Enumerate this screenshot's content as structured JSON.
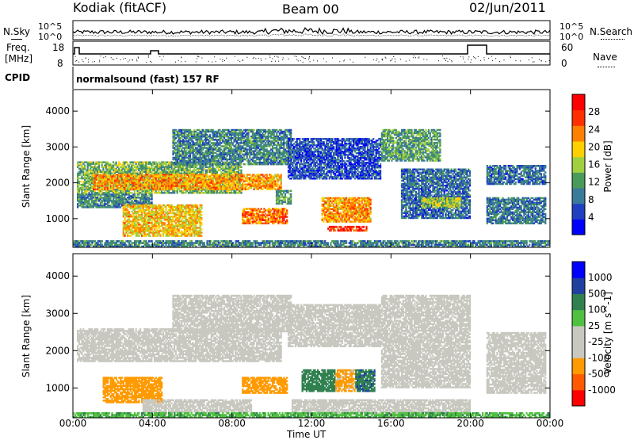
{
  "header": {
    "station": "Kodiak (fitACF)",
    "beam": "Beam 00",
    "date": "02/Jun/2011"
  },
  "strips": {
    "nsky_label": "N.Sky",
    "nsearch_label": "N.Search",
    "noise_ticks": [
      "10^5",
      "10^0"
    ],
    "freq_label": "Freq.",
    "freq_unit": "[MHz]",
    "freq_ticks": [
      "18",
      "8"
    ],
    "nave_label": "Nave",
    "nave_ticks": [
      "60",
      "0"
    ],
    "cpid_label": "CPID",
    "cpid_value": "normalsound (fast) 157 RF"
  },
  "colors": {
    "power": [
      "#0000ff",
      "#2040c0",
      "#3a7a9a",
      "#4a9a5a",
      "#a0d040",
      "#ffd000",
      "#ff8000",
      "#ff3000",
      "#ff0000"
    ],
    "velocity": [
      "#ff0000",
      "#ff5a00",
      "#ff9a00",
      "#c8c8c0",
      "#c8c8c0",
      "#50c040",
      "#308050",
      "#2040a0",
      "#0000ff"
    ],
    "ground_scatter": "#c0c0b8"
  },
  "chart_data": [
    {
      "type": "heatmap",
      "name": "power",
      "xlabel": "",
      "ylabel": "Slant Range [km]",
      "x_ticks": [
        "00:00",
        "04:00",
        "08:00",
        "12:00",
        "16:00",
        "20:00",
        "00:00"
      ],
      "xlim": [
        0,
        24
      ],
      "y_ticks": [
        1000,
        2000,
        3000,
        4000
      ],
      "ylim": [
        200,
        4600
      ],
      "colorbar_label": "Power [dB]",
      "colorbar_ticks": [
        4,
        8,
        12,
        16,
        20,
        24,
        28
      ],
      "colorbar_range": [
        0,
        32
      ],
      "regions": [
        {
          "t0": 0.2,
          "t1": 8.5,
          "r0": 1700,
          "r1": 2600,
          "level": 14
        },
        {
          "t0": 1.0,
          "t1": 10.5,
          "r0": 1800,
          "r1": 2250,
          "level": 22
        },
        {
          "t0": 0.2,
          "t1": 4.0,
          "r0": 1300,
          "r1": 1700,
          "level": 10
        },
        {
          "t0": 2.5,
          "t1": 6.5,
          "r0": 500,
          "r1": 1400,
          "level": 20
        },
        {
          "t0": 5.0,
          "t1": 11.0,
          "r0": 2500,
          "r1": 3500,
          "level": 10
        },
        {
          "t0": 8.5,
          "t1": 10.8,
          "r0": 850,
          "r1": 1300,
          "level": 24
        },
        {
          "t0": 10.2,
          "t1": 11.0,
          "r0": 1400,
          "r1": 1800,
          "level": 12
        },
        {
          "t0": 10.8,
          "t1": 15.5,
          "r0": 2100,
          "r1": 3250,
          "level": 6
        },
        {
          "t0": 12.5,
          "t1": 15.0,
          "r0": 900,
          "r1": 1600,
          "level": 22
        },
        {
          "t0": 12.8,
          "t1": 14.8,
          "r0": 650,
          "r1": 800,
          "level": 28
        },
        {
          "t0": 15.5,
          "t1": 18.5,
          "r0": 2600,
          "r1": 3500,
          "level": 12
        },
        {
          "t0": 16.5,
          "t1": 20.0,
          "r0": 1000,
          "r1": 2400,
          "level": 8
        },
        {
          "t0": 17.5,
          "t1": 19.5,
          "r0": 1300,
          "r1": 1600,
          "level": 16
        },
        {
          "t0": 20.8,
          "t1": 23.8,
          "r0": 850,
          "r1": 1600,
          "level": 9
        },
        {
          "t0": 20.8,
          "t1": 23.8,
          "r0": 1950,
          "r1": 2500,
          "level": 8
        },
        {
          "t0": 0.0,
          "t1": 24.0,
          "r0": 200,
          "r1": 400,
          "level": 10
        }
      ]
    },
    {
      "type": "heatmap",
      "name": "velocity",
      "xlabel": "Time UT",
      "ylabel": "Slant Range [km]",
      "x_ticks": [
        "00:00",
        "04:00",
        "08:00",
        "12:00",
        "16:00",
        "20:00",
        "00:00"
      ],
      "xlim": [
        0,
        24
      ],
      "y_ticks": [
        1000,
        2000,
        3000,
        4000
      ],
      "ylim": [
        200,
        4600
      ],
      "colorbar_label": "Velocity [m s^-1]",
      "colorbar_ticks": [
        "-1000",
        "-500",
        "-100",
        "-25",
        "25",
        "100",
        "500",
        "1000"
      ],
      "regions": [
        {
          "t0": 0.2,
          "t1": 10.5,
          "r0": 1700,
          "r1": 2600,
          "v": 0
        },
        {
          "t0": 5.0,
          "t1": 11.0,
          "r0": 2500,
          "r1": 3500,
          "v": 0
        },
        {
          "t0": 10.8,
          "t1": 15.5,
          "r0": 2100,
          "r1": 3250,
          "v": 0
        },
        {
          "t0": 15.5,
          "t1": 20.0,
          "r0": 1000,
          "r1": 3500,
          "v": 0
        },
        {
          "t0": 20.8,
          "t1": 23.8,
          "r0": 850,
          "r1": 2500,
          "v": 0
        },
        {
          "t0": 1.5,
          "t1": 4.5,
          "r0": 600,
          "r1": 1300,
          "v": -200
        },
        {
          "t0": 3.5,
          "t1": 9.0,
          "r0": 350,
          "r1": 700,
          "v": 0
        },
        {
          "t0": 8.5,
          "t1": 10.8,
          "r0": 850,
          "r1": 1300,
          "v": -300
        },
        {
          "t0": 11.5,
          "t1": 13.2,
          "r0": 900,
          "r1": 1500,
          "v": 300
        },
        {
          "t0": 13.2,
          "t1": 14.2,
          "r0": 900,
          "r1": 1500,
          "v": -150
        },
        {
          "t0": 14.2,
          "t1": 15.2,
          "r0": 900,
          "r1": 1500,
          "v": 400
        },
        {
          "t0": 11.0,
          "t1": 20.0,
          "r0": 300,
          "r1": 700,
          "v": 0
        },
        {
          "t0": 0.0,
          "t1": 24.0,
          "r0": 200,
          "r1": 350,
          "v": 80
        }
      ]
    }
  ]
}
